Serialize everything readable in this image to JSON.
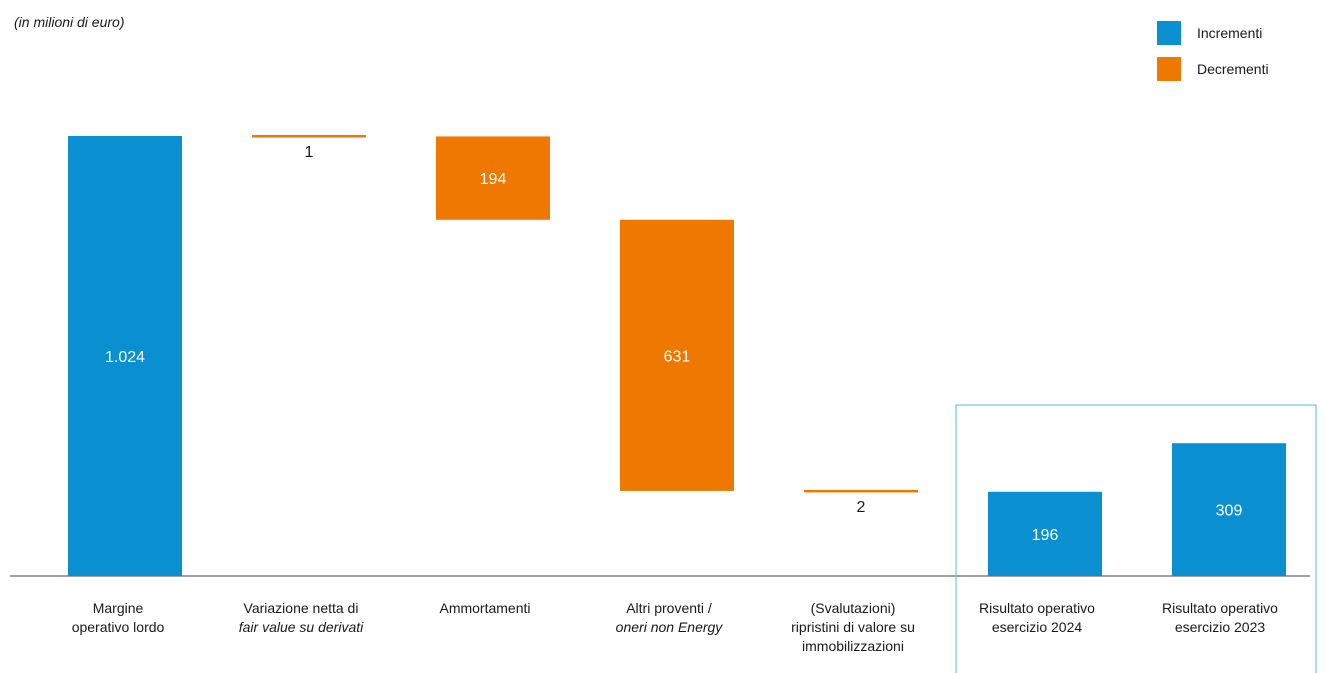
{
  "chart_data": {
    "type": "bar",
    "subtype": "waterfall",
    "unit_note": "(in milioni di euro)",
    "legend": [
      {
        "label": "Incrementi",
        "color": "#0a8fd0"
      },
      {
        "label": "Decrementi",
        "color": "#ee7800"
      }
    ],
    "categories": [
      [
        "Margine",
        "operativo lordo"
      ],
      [
        "Variazione netta di",
        "fair value su derivati"
      ],
      [
        "Ammortamenti"
      ],
      [
        "Altri proventi /",
        "oneri non Energy"
      ],
      [
        "(Svalutazioni)",
        "ripristini di valore su",
        "immobilizzazioni"
      ],
      [
        "Risultato operativo",
        "esercizio 2024"
      ],
      [
        "Risultato operativo",
        "esercizio 2023"
      ]
    ],
    "bars": [
      {
        "label": "1.024",
        "value": 1024,
        "kind": "increment",
        "base": 0
      },
      {
        "label": "1",
        "value": -1,
        "kind": "decrement",
        "base": 1024
      },
      {
        "label": "194",
        "value": 194,
        "kind": "decrement",
        "base": 1023
      },
      {
        "label": "631",
        "value": 631,
        "kind": "decrement",
        "base": 829
      },
      {
        "label": "2",
        "value": -2,
        "kind": "decrement",
        "base": 198
      },
      {
        "label": "196",
        "value": 196,
        "kind": "total",
        "base": 0
      },
      {
        "label": "309",
        "value": 309,
        "kind": "total",
        "base": 0
      }
    ],
    "highlight_box_categories": [
      5,
      6
    ]
  }
}
